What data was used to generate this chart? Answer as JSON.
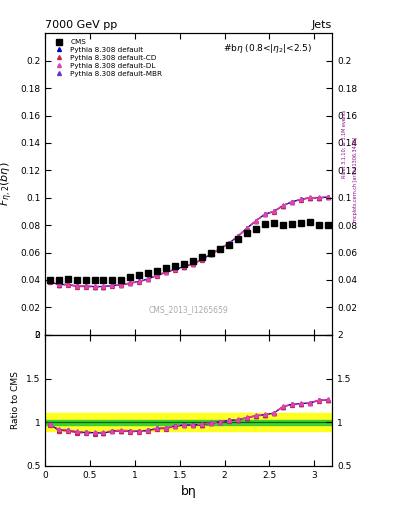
{
  "title_left": "7000 GeV pp",
  "title_right": "Jets",
  "annotation": "#bη (0.8<|η₂|<2.5)",
  "watermark": "CMS_2013_I1265659",
  "xlabel": "bη",
  "ylabel_main": "$F_{\\eta,2}(b\\eta)$",
  "ylabel_ratio": "Ratio to CMS",
  "ylim_main": [
    0.0,
    0.22
  ],
  "ylim_ratio": [
    0.5,
    2.0
  ],
  "xlim": [
    0.0,
    3.2
  ],
  "cms_x": [
    0.05,
    0.15,
    0.25,
    0.35,
    0.45,
    0.55,
    0.65,
    0.75,
    0.85,
    0.95,
    1.05,
    1.15,
    1.25,
    1.35,
    1.45,
    1.55,
    1.65,
    1.75,
    1.85,
    1.95,
    2.05,
    2.15,
    2.25,
    2.35,
    2.45,
    2.55,
    2.65,
    2.75,
    2.85,
    2.95,
    3.05,
    3.15
  ],
  "cms_y": [
    0.04,
    0.04,
    0.0405,
    0.04,
    0.0402,
    0.04,
    0.0402,
    0.04,
    0.0403,
    0.042,
    0.0435,
    0.045,
    0.0468,
    0.049,
    0.05,
    0.0515,
    0.0535,
    0.0565,
    0.0595,
    0.0625,
    0.0655,
    0.07,
    0.074,
    0.0775,
    0.081,
    0.0815,
    0.08,
    0.0805,
    0.0815,
    0.082,
    0.08,
    0.08
  ],
  "pythia_default_y": [
    0.039,
    0.0365,
    0.0368,
    0.0355,
    0.0355,
    0.0352,
    0.0352,
    0.036,
    0.0365,
    0.0378,
    0.039,
    0.0408,
    0.0435,
    0.0458,
    0.0478,
    0.0498,
    0.0518,
    0.055,
    0.059,
    0.0628,
    0.0668,
    0.072,
    0.0778,
    0.0832,
    0.088,
    0.09,
    0.0942,
    0.097,
    0.0988,
    0.1,
    0.1,
    0.1005
  ],
  "pythia_cd_y": [
    0.0388,
    0.0362,
    0.0365,
    0.0352,
    0.0352,
    0.0348,
    0.035,
    0.0358,
    0.0363,
    0.0375,
    0.0388,
    0.0405,
    0.0432,
    0.0455,
    0.0476,
    0.0496,
    0.0516,
    0.0548,
    0.0588,
    0.0626,
    0.0666,
    0.0718,
    0.0776,
    0.083,
    0.0878,
    0.0898,
    0.094,
    0.0968,
    0.0986,
    0.0998,
    0.0998,
    0.1002
  ],
  "pythia_dl_y": [
    0.0392,
    0.0368,
    0.037,
    0.0358,
    0.0358,
    0.0354,
    0.0355,
    0.0362,
    0.0367,
    0.038,
    0.0392,
    0.041,
    0.0438,
    0.046,
    0.048,
    0.05,
    0.052,
    0.0552,
    0.0592,
    0.063,
    0.067,
    0.0722,
    0.078,
    0.0834,
    0.0882,
    0.0902,
    0.0944,
    0.0972,
    0.099,
    0.1002,
    0.1002,
    0.1008
  ],
  "pythia_mbr_y": [
    0.039,
    0.0365,
    0.0368,
    0.0355,
    0.0355,
    0.0352,
    0.0352,
    0.036,
    0.0365,
    0.0378,
    0.039,
    0.0408,
    0.0435,
    0.0458,
    0.0478,
    0.0498,
    0.0518,
    0.055,
    0.059,
    0.0628,
    0.0668,
    0.072,
    0.0778,
    0.0832,
    0.088,
    0.09,
    0.0942,
    0.097,
    0.0988,
    0.1,
    0.1,
    0.1005
  ],
  "ratio_default_y": [
    0.975,
    0.912,
    0.908,
    0.888,
    0.883,
    0.88,
    0.875,
    0.9,
    0.905,
    0.9,
    0.897,
    0.907,
    0.929,
    0.935,
    0.956,
    0.967,
    0.969,
    0.973,
    0.991,
    1.005,
    1.02,
    1.029,
    1.051,
    1.074,
    1.086,
    1.104,
    1.178,
    1.205,
    1.213,
    1.22,
    1.25,
    1.257
  ],
  "ratio_cd_y": [
    0.97,
    0.905,
    0.9,
    0.88,
    0.876,
    0.87,
    0.872,
    0.895,
    0.9,
    0.893,
    0.892,
    0.9,
    0.923,
    0.928,
    0.952,
    0.963,
    0.966,
    0.97,
    0.988,
    1.002,
    1.017,
    1.026,
    1.049,
    1.071,
    1.083,
    1.1,
    1.175,
    1.202,
    1.21,
    1.217,
    1.247,
    1.253
  ],
  "ratio_dl_y": [
    0.98,
    0.92,
    0.915,
    0.895,
    0.891,
    0.885,
    0.886,
    0.905,
    0.909,
    0.905,
    0.901,
    0.912,
    0.936,
    0.939,
    0.961,
    0.971,
    0.972,
    0.977,
    0.994,
    1.008,
    1.023,
    1.032,
    1.054,
    1.077,
    1.089,
    1.107,
    1.18,
    1.208,
    1.215,
    1.223,
    1.253,
    1.26
  ],
  "ratio_mbr_y": [
    0.975,
    0.912,
    0.908,
    0.888,
    0.883,
    0.88,
    0.875,
    0.9,
    0.905,
    0.9,
    0.897,
    0.907,
    0.929,
    0.935,
    0.956,
    0.967,
    0.969,
    0.973,
    0.991,
    1.005,
    1.02,
    1.029,
    1.051,
    1.074,
    1.086,
    1.104,
    1.178,
    1.205,
    1.213,
    1.22,
    1.25,
    1.257
  ],
  "color_default": "#0000cc",
  "color_cd": "#cc2244",
  "color_dl": "#dd44aa",
  "color_mbr": "#6633cc",
  "band_yellow": [
    0.9,
    1.1
  ],
  "band_green": [
    0.97,
    1.03
  ]
}
